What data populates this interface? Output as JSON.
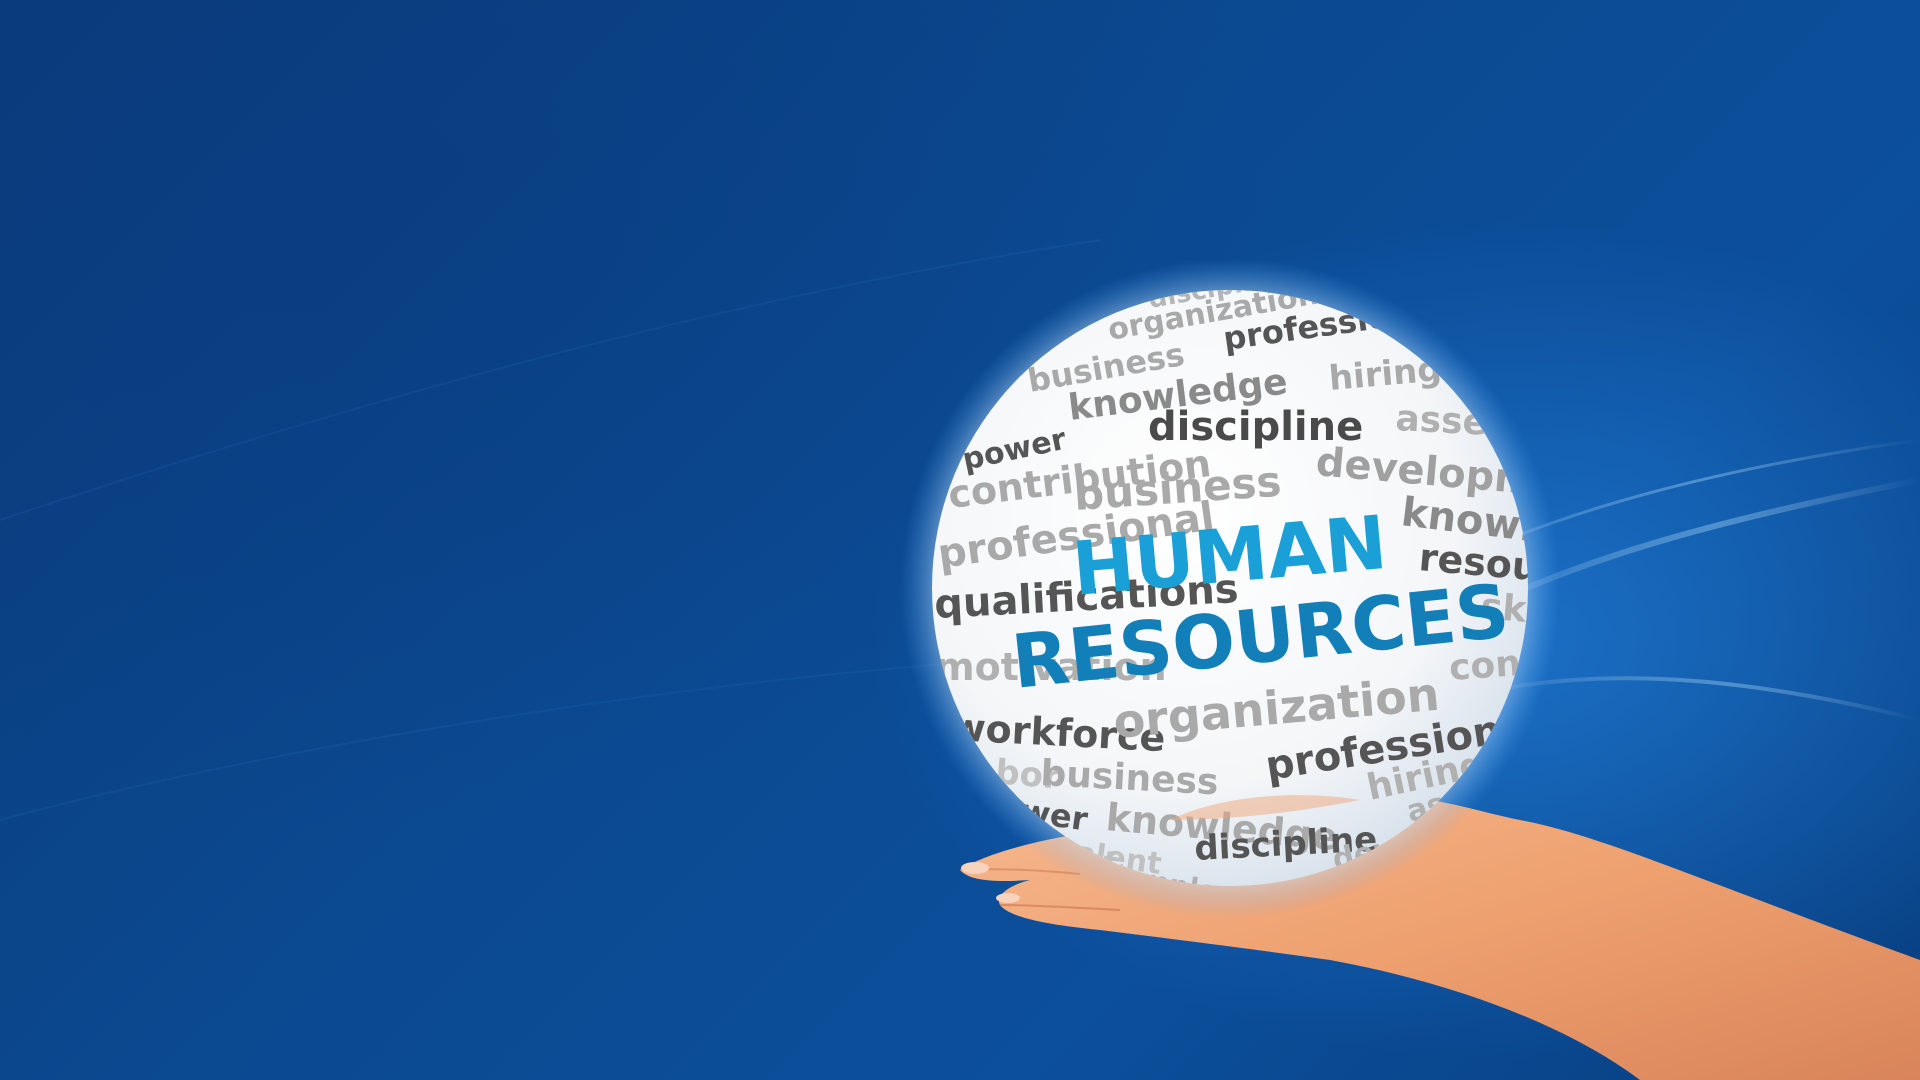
{
  "image": {
    "description_words": {
      "headline": [
        "HUMAN",
        "RESOURCES"
      ],
      "sphere_words": [
        "discipline",
        "organization",
        "professional",
        "business",
        "knowledge",
        "hiring",
        "power",
        "discipline",
        "assets",
        "contribution",
        "business",
        "development",
        "professional",
        "knowledge",
        "resources",
        "qualifications",
        "skills",
        "motivation",
        "contribution",
        "workforce",
        "organization",
        "labor",
        "business",
        "professional",
        "talent",
        "power",
        "knowledge",
        "hiring",
        "assets",
        "talent",
        "discipline",
        "development",
        "employees"
      ]
    },
    "colors": {
      "background_dark": "#0a3a78",
      "background_mid": "#0c4f9c",
      "headline": "#1a9fd6",
      "headline_dark": "#127fb8",
      "word_dark": "#555555",
      "word_light": "#a9a9a9",
      "sphere": "#ffffff",
      "skin": "#f0a57a"
    }
  }
}
